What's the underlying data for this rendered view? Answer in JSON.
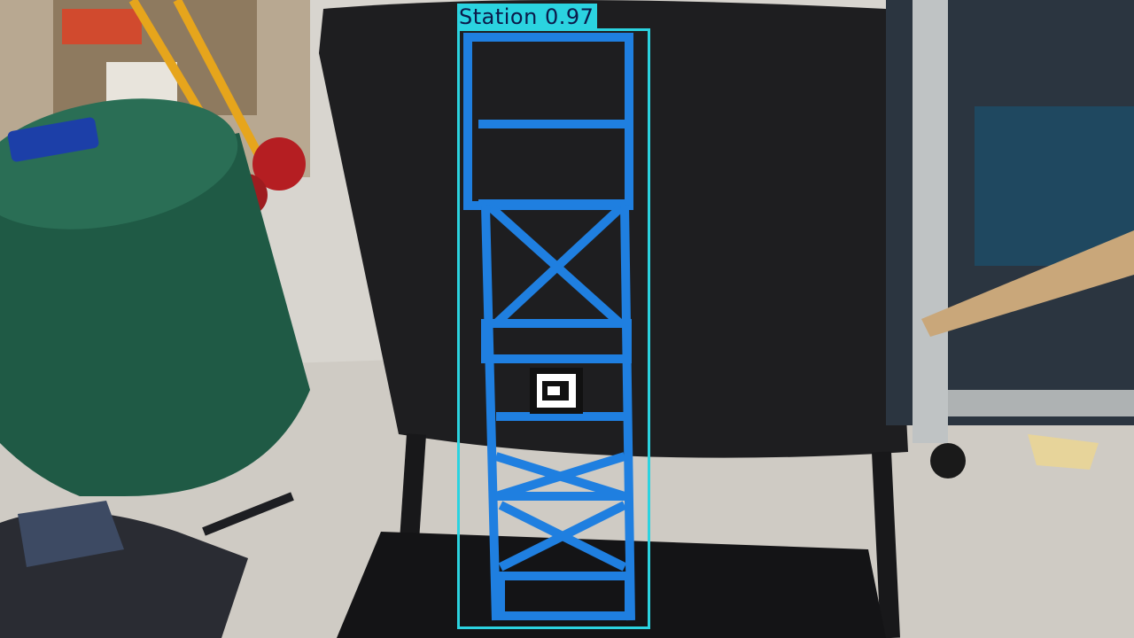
{
  "detection": {
    "label": "Station",
    "confidence": "0.97",
    "box_color": "#2bd3e0",
    "text_color": "#0b1a4a"
  }
}
